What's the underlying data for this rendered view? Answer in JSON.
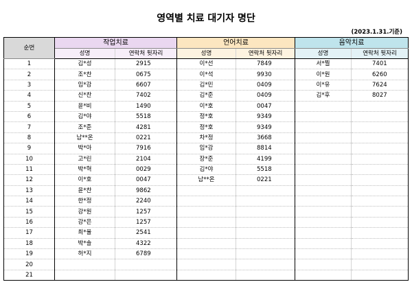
{
  "title": "영역별 치료 대기자 명단",
  "date": "(2023.1.31.기준)",
  "headers": {
    "num": "순번",
    "groups": [
      "작업치료",
      "언어치료",
      "음악치료"
    ],
    "name": "성명",
    "phone": "연락처 뒷자리"
  },
  "rows": [
    {
      "num": "1",
      "occ": {
        "name": "김*성",
        "phone": "2915"
      },
      "speech": {
        "name": "이*선",
        "phone": "7849"
      },
      "music": {
        "name": "서*찔",
        "phone": "7401"
      }
    },
    {
      "num": "2",
      "occ": {
        "name": "조*찬",
        "phone": "0675"
      },
      "speech": {
        "name": "이*석",
        "phone": "9930"
      },
      "music": {
        "name": "이*원",
        "phone": "6260"
      }
    },
    {
      "num": "3",
      "occ": {
        "name": "임*강",
        "phone": "6607"
      },
      "speech": {
        "name": "김*민",
        "phone": "0409"
      },
      "music": {
        "name": "이*유",
        "phone": "7624"
      }
    },
    {
      "num": "4",
      "occ": {
        "name": "신*찬",
        "phone": "7402"
      },
      "speech": {
        "name": "김*준",
        "phone": "0409"
      },
      "music": {
        "name": "김*후",
        "phone": "8027"
      }
    },
    {
      "num": "5",
      "occ": {
        "name": "윤*비",
        "phone": "1490"
      },
      "speech": {
        "name": "이*호",
        "phone": "0047"
      },
      "music": {
        "name": "",
        "phone": ""
      }
    },
    {
      "num": "6",
      "occ": {
        "name": "김*야",
        "phone": "5518"
      },
      "speech": {
        "name": "정*호",
        "phone": "9349"
      },
      "music": {
        "name": "",
        "phone": ""
      }
    },
    {
      "num": "7",
      "occ": {
        "name": "조*준",
        "phone": "4281"
      },
      "speech": {
        "name": "정*호",
        "phone": "9349"
      },
      "music": {
        "name": "",
        "phone": ""
      }
    },
    {
      "num": "8",
      "occ": {
        "name": "남**온",
        "phone": "0221"
      },
      "speech": {
        "name": "차*정",
        "phone": "3668"
      },
      "music": {
        "name": "",
        "phone": ""
      }
    },
    {
      "num": "9",
      "occ": {
        "name": "박*아",
        "phone": "7916"
      },
      "speech": {
        "name": "임*강",
        "phone": "8814"
      },
      "music": {
        "name": "",
        "phone": ""
      }
    },
    {
      "num": "10",
      "occ": {
        "name": "고*린",
        "phone": "2104"
      },
      "speech": {
        "name": "장*준",
        "phone": "4199"
      },
      "music": {
        "name": "",
        "phone": ""
      }
    },
    {
      "num": "11",
      "occ": {
        "name": "박*혁",
        "phone": "0029"
      },
      "speech": {
        "name": "김*야",
        "phone": "5518"
      },
      "music": {
        "name": "",
        "phone": ""
      }
    },
    {
      "num": "12",
      "occ": {
        "name": "이*호",
        "phone": "0047"
      },
      "speech": {
        "name": "남**온",
        "phone": "0221"
      },
      "music": {
        "name": "",
        "phone": ""
      }
    },
    {
      "num": "13",
      "occ": {
        "name": "윤*찬",
        "phone": "9862"
      },
      "speech": {
        "name": "",
        "phone": ""
      },
      "music": {
        "name": "",
        "phone": ""
      }
    },
    {
      "num": "14",
      "occ": {
        "name": "한*정",
        "phone": "2240"
      },
      "speech": {
        "name": "",
        "phone": ""
      },
      "music": {
        "name": "",
        "phone": ""
      }
    },
    {
      "num": "15",
      "occ": {
        "name": "강*원",
        "phone": "1257"
      },
      "speech": {
        "name": "",
        "phone": ""
      },
      "music": {
        "name": "",
        "phone": ""
      }
    },
    {
      "num": "16",
      "occ": {
        "name": "강*은",
        "phone": "1257"
      },
      "speech": {
        "name": "",
        "phone": ""
      },
      "music": {
        "name": "",
        "phone": ""
      }
    },
    {
      "num": "17",
      "occ": {
        "name": "최*율",
        "phone": "2541"
      },
      "speech": {
        "name": "",
        "phone": ""
      },
      "music": {
        "name": "",
        "phone": ""
      }
    },
    {
      "num": "18",
      "occ": {
        "name": "박*솔",
        "phone": "4322"
      },
      "speech": {
        "name": "",
        "phone": ""
      },
      "music": {
        "name": "",
        "phone": ""
      }
    },
    {
      "num": "19",
      "occ": {
        "name": "허*지",
        "phone": "6789"
      },
      "speech": {
        "name": "",
        "phone": ""
      },
      "music": {
        "name": "",
        "phone": ""
      }
    },
    {
      "num": "20",
      "occ": {
        "name": "",
        "phone": ""
      },
      "speech": {
        "name": "",
        "phone": ""
      },
      "music": {
        "name": "",
        "phone": ""
      }
    },
    {
      "num": "21",
      "occ": {
        "name": "",
        "phone": ""
      },
      "speech": {
        "name": "",
        "phone": ""
      },
      "music": {
        "name": "",
        "phone": ""
      }
    }
  ]
}
